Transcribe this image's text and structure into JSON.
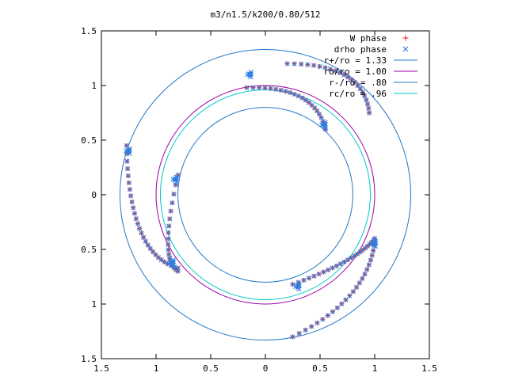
{
  "chart_data": {
    "type": "scatter",
    "title": "m3/n1.5/k200/0.80/512",
    "xlabel": "",
    "ylabel": "",
    "xlim": [
      -1.5,
      1.5
    ],
    "ylim": [
      -1.5,
      1.5
    ],
    "x_ticks": [
      -1.5,
      -1,
      -0.5,
      0,
      0.5,
      1,
      1.5
    ],
    "y_ticks": [
      -1.5,
      -1,
      -0.5,
      0,
      0.5,
      1,
      1.5
    ],
    "x_tick_labels": [
      "1.5",
      "1",
      "0.5",
      "0",
      "0.5",
      "1",
      "1.5"
    ],
    "y_tick_labels": [
      "1.5",
      "1",
      "0.5",
      "0",
      "0.5",
      "1",
      "1.5"
    ],
    "grid": false,
    "legend_position": "top-right",
    "circles": [
      {
        "label": "r+/ro = 1.33",
        "radius": 1.33,
        "color": "#1f78c8"
      },
      {
        "label": "ro/ro = 1.00",
        "radius": 1.0,
        "color": "#9b00a8"
      },
      {
        "label": "r-/ro = .80",
        "radius": 0.8,
        "color": "#1f78c8"
      },
      {
        "label": "rc/ro = .96",
        "radius": 0.96,
        "color": "#00c8c8"
      }
    ],
    "series": [
      {
        "name": "W phase",
        "marker": "+",
        "color": "#e02020",
        "arms": [
          {
            "start": [
              -0.17,
              0.98
            ],
            "end": [
              0.55,
              0.6
            ],
            "control": [
              0.45,
              1.0
            ],
            "count": 22
          },
          {
            "start": [
              0.2,
              1.2
            ],
            "end": [
              0.95,
              0.75
            ],
            "control": [
              0.9,
              1.2
            ],
            "count": 22
          },
          {
            "start": [
              -1.27,
              0.45
            ],
            "end": [
              -0.8,
              -0.67
            ],
            "control": [
              -1.25,
              -0.55
            ],
            "count": 28
          },
          {
            "start": [
              -0.8,
              0.18
            ],
            "end": [
              -0.8,
              -0.7
            ],
            "control": [
              -0.98,
              -0.6
            ],
            "count": 18
          },
          {
            "start": [
              0.25,
              -0.82
            ],
            "end": [
              1.0,
              -0.4
            ],
            "control": [
              0.85,
              -0.6
            ],
            "count": 24
          },
          {
            "start": [
              0.25,
              -1.3
            ],
            "end": [
              1.0,
              -0.42
            ],
            "control": [
              0.95,
              -0.95
            ],
            "count": 24
          }
        ]
      },
      {
        "name": "drho phase",
        "marker": "x",
        "color": "#2f7fe0",
        "arms": [
          {
            "start": [
              -0.17,
              0.98
            ],
            "end": [
              0.55,
              0.6
            ],
            "control": [
              0.45,
              1.0
            ],
            "count": 22
          },
          {
            "start": [
              0.2,
              1.2
            ],
            "end": [
              0.95,
              0.75
            ],
            "control": [
              0.9,
              1.2
            ],
            "count": 22
          },
          {
            "start": [
              -1.27,
              0.45
            ],
            "end": [
              -0.8,
              -0.67
            ],
            "control": [
              -1.25,
              -0.55
            ],
            "count": 28
          },
          {
            "start": [
              -0.8,
              0.18
            ],
            "end": [
              -0.8,
              -0.7
            ],
            "control": [
              -0.98,
              -0.6
            ],
            "count": 18
          },
          {
            "start": [
              0.25,
              -0.82
            ],
            "end": [
              1.0,
              -0.4
            ],
            "control": [
              0.85,
              -0.6
            ],
            "count": 24
          },
          {
            "start": [
              0.25,
              -1.3
            ],
            "end": [
              1.0,
              -0.42
            ],
            "control": [
              0.95,
              -0.95
            ],
            "count": 24
          }
        ]
      }
    ],
    "clusters": [
      {
        "center": [
          -0.14,
          1.1
        ],
        "color": "#2f7fe0"
      },
      {
        "center": [
          0.54,
          0.64
        ],
        "color": "#2f7fe0"
      },
      {
        "center": [
          -1.25,
          0.4
        ],
        "color": "#2f7fe0"
      },
      {
        "center": [
          -0.82,
          0.14
        ],
        "color": "#2f7fe0"
      },
      {
        "center": [
          -0.85,
          -0.62
        ],
        "color": "#2f7fe0"
      },
      {
        "center": [
          1.0,
          -0.45
        ],
        "color": "#2f7fe0"
      },
      {
        "center": [
          0.3,
          -0.84
        ],
        "color": "#2f7fe0"
      }
    ]
  }
}
